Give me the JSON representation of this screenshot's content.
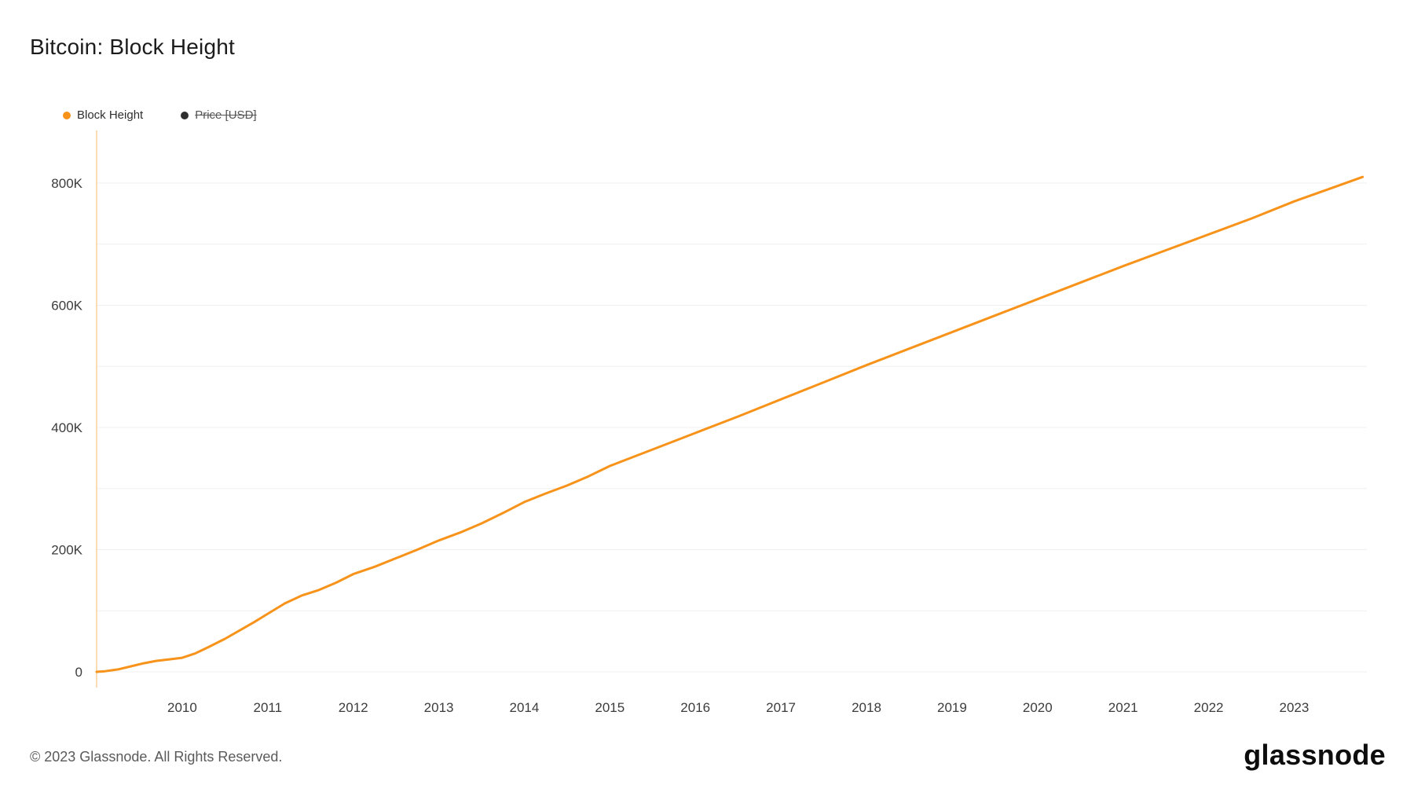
{
  "header": {
    "title": "Bitcoin: Block Height"
  },
  "legend": [
    {
      "label": "Block Height",
      "color": "#f7931a",
      "enabled": true
    },
    {
      "label": "Price [USD]",
      "color": "#2f2f2f",
      "enabled": false
    }
  ],
  "footer": {
    "copyright": "© 2023 Glassnode. All Rights Reserved.",
    "brand": "glassnode"
  },
  "chart_data": {
    "type": "line",
    "title": "Bitcoin: Block Height",
    "xlabel": "",
    "ylabel": "",
    "xlim": [
      2009.0,
      2023.85
    ],
    "ylim": [
      0,
      800000
    ],
    "grid": "horizontal",
    "grid_color": "#efefef",
    "axis_line_color": "#f9cf9b",
    "legend_position": "top-left",
    "xticks": [
      {
        "value": 2010,
        "label": "2010"
      },
      {
        "value": 2011,
        "label": "2011"
      },
      {
        "value": 2012,
        "label": "2012"
      },
      {
        "value": 2013,
        "label": "2013"
      },
      {
        "value": 2014,
        "label": "2014"
      },
      {
        "value": 2015,
        "label": "2015"
      },
      {
        "value": 2016,
        "label": "2016"
      },
      {
        "value": 2017,
        "label": "2017"
      },
      {
        "value": 2018,
        "label": "2018"
      },
      {
        "value": 2019,
        "label": "2019"
      },
      {
        "value": 2020,
        "label": "2020"
      },
      {
        "value": 2021,
        "label": "2021"
      },
      {
        "value": 2022,
        "label": "2022"
      },
      {
        "value": 2023,
        "label": "2023"
      }
    ],
    "yticks": [
      {
        "value": 0,
        "label": "0"
      },
      {
        "value": 200000,
        "label": "200K"
      },
      {
        "value": 400000,
        "label": "400K"
      },
      {
        "value": 600000,
        "label": "600K"
      },
      {
        "value": 800000,
        "label": "800K"
      }
    ],
    "gridline_values": [
      0,
      100000,
      200000,
      300000,
      400000,
      500000,
      600000,
      700000,
      800000
    ],
    "series": [
      {
        "name": "Block Height",
        "color": "#f7931a",
        "x": [
          2009.0,
          2009.1,
          2009.25,
          2009.4,
          2009.55,
          2009.7,
          2009.85,
          2010.0,
          2010.15,
          2010.3,
          2010.5,
          2010.7,
          2010.85,
          2011.0,
          2011.2,
          2011.4,
          2011.6,
          2011.8,
          2012.0,
          2012.25,
          2012.5,
          2012.75,
          2013.0,
          2013.25,
          2013.5,
          2013.75,
          2014.0,
          2014.25,
          2014.5,
          2014.75,
          2015.0,
          2015.5,
          2016.0,
          2016.5,
          2017.0,
          2017.5,
          2018.0,
          2018.5,
          2019.0,
          2019.5,
          2020.0,
          2020.5,
          2021.0,
          2021.5,
          2022.0,
          2022.5,
          2023.0,
          2023.4,
          2023.8
        ],
        "y": [
          0,
          1000,
          4000,
          9000,
          14000,
          18000,
          20500,
          23000,
          30000,
          40000,
          54000,
          70000,
          82000,
          95000,
          112000,
          125000,
          134000,
          146000,
          160000,
          172000,
          186000,
          200000,
          215000,
          228000,
          243000,
          260000,
          278000,
          292000,
          305000,
          320000,
          337000,
          364000,
          391000,
          418000,
          446000,
          474000,
          502000,
          529000,
          556000,
          583000,
          610000,
          637000,
          664000,
          690000,
          716000,
          742000,
          770000,
          790000,
          810000
        ]
      }
    ]
  }
}
